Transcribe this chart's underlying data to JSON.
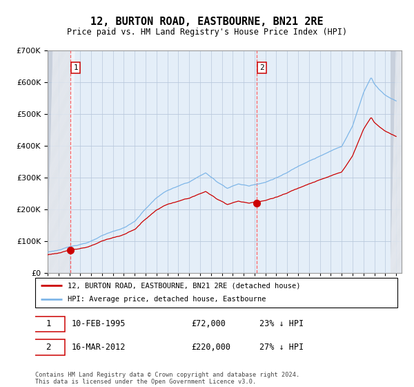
{
  "title": "12, BURTON ROAD, EASTBOURNE, BN21 2RE",
  "subtitle": "Price paid vs. HM Land Registry's House Price Index (HPI)",
  "ylim": [
    0,
    700000
  ],
  "yticks": [
    0,
    100000,
    200000,
    300000,
    400000,
    500000,
    600000,
    700000
  ],
  "sale1_date": 1995.11,
  "sale1_price": 72000,
  "sale2_date": 2012.21,
  "sale2_price": 220000,
  "legend_line1": "12, BURTON ROAD, EASTBOURNE, BN21 2RE (detached house)",
  "legend_line2": "HPI: Average price, detached house, Eastbourne",
  "hpi_color": "#7EB6E8",
  "price_color": "#CC0000",
  "vline_color": "#FF5555",
  "grid_color": "#C8D8E8",
  "bg_color": "#E4EEF8",
  "hatch_color": "#C8D0DC",
  "footnote": "Contains HM Land Registry data © Crown copyright and database right 2024.\nThis data is licensed under the Open Government Licence v3.0."
}
